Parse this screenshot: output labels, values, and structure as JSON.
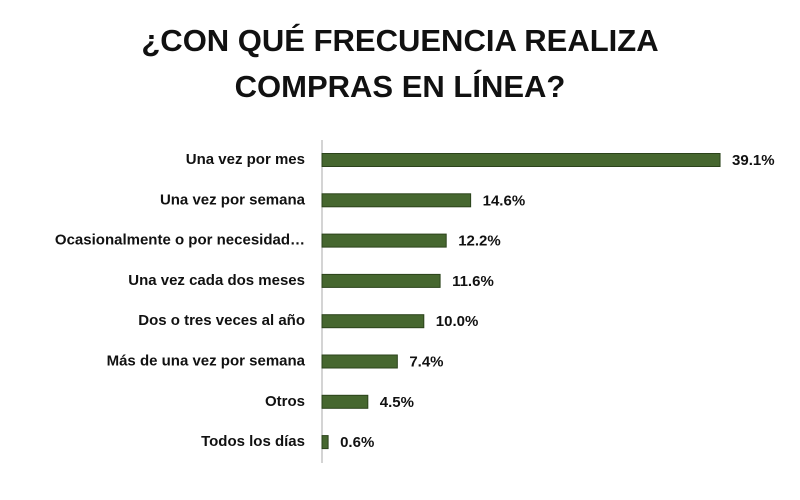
{
  "chart_data": {
    "type": "bar",
    "orientation": "horizontal",
    "title": "¿CON QUÉ FRECUENCIA REALIZA COMPRAS EN LÍNEA?",
    "categories": [
      "Una vez por mes",
      "Una vez por semana",
      "Ocasionalmente o por necesidad…",
      "Una vez cada dos meses",
      "Dos o tres veces al año",
      "Más de una vez por semana",
      "Otros",
      "Todos los días"
    ],
    "values": [
      39.1,
      14.6,
      12.2,
      11.6,
      10.0,
      7.4,
      4.5,
      0.6
    ],
    "value_labels": [
      "39.1%",
      "14.6%",
      "12.2%",
      "11.6%",
      "10.0%",
      "7.4%",
      "4.5%",
      "0.6%"
    ],
    "color": "#46672f"
  }
}
